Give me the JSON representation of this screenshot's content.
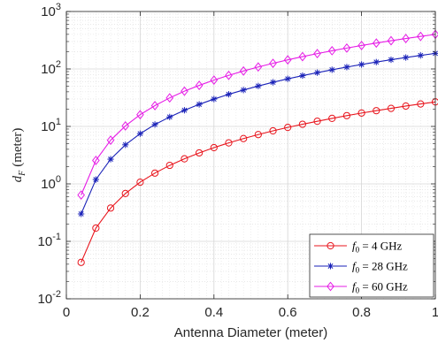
{
  "chart_data": {
    "type": "line",
    "title": "",
    "xlabel": "Antenna Diameter (meter)",
    "ylabel": "d",
    "ylabel_sub": "F",
    "ylabel_unit": "(meter)",
    "xlim": [
      0,
      1
    ],
    "ylim": [
      0.01,
      1000
    ],
    "y_scale": "log",
    "grid": true,
    "legend_placement": "bottom-right",
    "x_ticks": [
      "0",
      "0.2",
      "0.4",
      "0.6",
      "0.8",
      "1"
    ],
    "y_ticks": [
      {
        "base": "10",
        "exp": "-2"
      },
      {
        "base": "10",
        "exp": "-1"
      },
      {
        "base": "10",
        "exp": "0"
      },
      {
        "base": "10",
        "exp": "1"
      },
      {
        "base": "10",
        "exp": "2"
      },
      {
        "base": "10",
        "exp": "3"
      }
    ],
    "x": [
      0.04,
      0.08,
      0.12,
      0.16,
      0.2,
      0.24,
      0.28,
      0.32,
      0.36,
      0.4,
      0.44,
      0.48,
      0.52,
      0.56,
      0.6,
      0.64,
      0.68,
      0.72,
      0.76,
      0.8,
      0.84,
      0.88,
      0.92,
      0.96,
      1.0
    ],
    "series": [
      {
        "name": "f0 = 4 GHz",
        "legend_var": "f",
        "legend_sub": "0",
        "legend_rest": " = 4 GHz",
        "color": "#e8141c",
        "marker": "circle",
        "values": [
          0.043,
          0.17,
          0.38,
          0.68,
          1.07,
          1.54,
          2.1,
          2.73,
          3.46,
          4.27,
          5.17,
          6.15,
          7.21,
          8.37,
          9.6,
          10.9,
          12.3,
          13.8,
          15.4,
          17.1,
          18.8,
          20.6,
          22.6,
          24.6,
          26.7
        ]
      },
      {
        "name": "f0 = 28 GHz",
        "legend_var": "f",
        "legend_sub": "0",
        "legend_rest": " = 28 GHz",
        "color": "#1a22b8",
        "marker": "star",
        "values": [
          0.3,
          1.19,
          2.69,
          4.78,
          7.47,
          10.8,
          14.6,
          19.1,
          24.2,
          29.9,
          36.2,
          43.0,
          50.5,
          58.6,
          67.3,
          76.5,
          86.3,
          96.8,
          107.8,
          119.5,
          131.7,
          144.6,
          158.0,
          172.0,
          186.7
        ]
      },
      {
        "name": "f0 = 60 GHz",
        "legend_var": "f",
        "legend_sub": "0",
        "legend_rest": " = 60 GHz",
        "color": "#e61ce6",
        "marker": "diamond",
        "values": [
          0.64,
          2.56,
          5.76,
          10.2,
          16.0,
          23.0,
          31.4,
          41.0,
          51.8,
          64.0,
          77.4,
          92.2,
          108.2,
          125.4,
          144.0,
          163.8,
          185.0,
          207.4,
          231.0,
          256.0,
          282.2,
          309.8,
          338.6,
          368.6,
          400.0
        ]
      }
    ]
  }
}
